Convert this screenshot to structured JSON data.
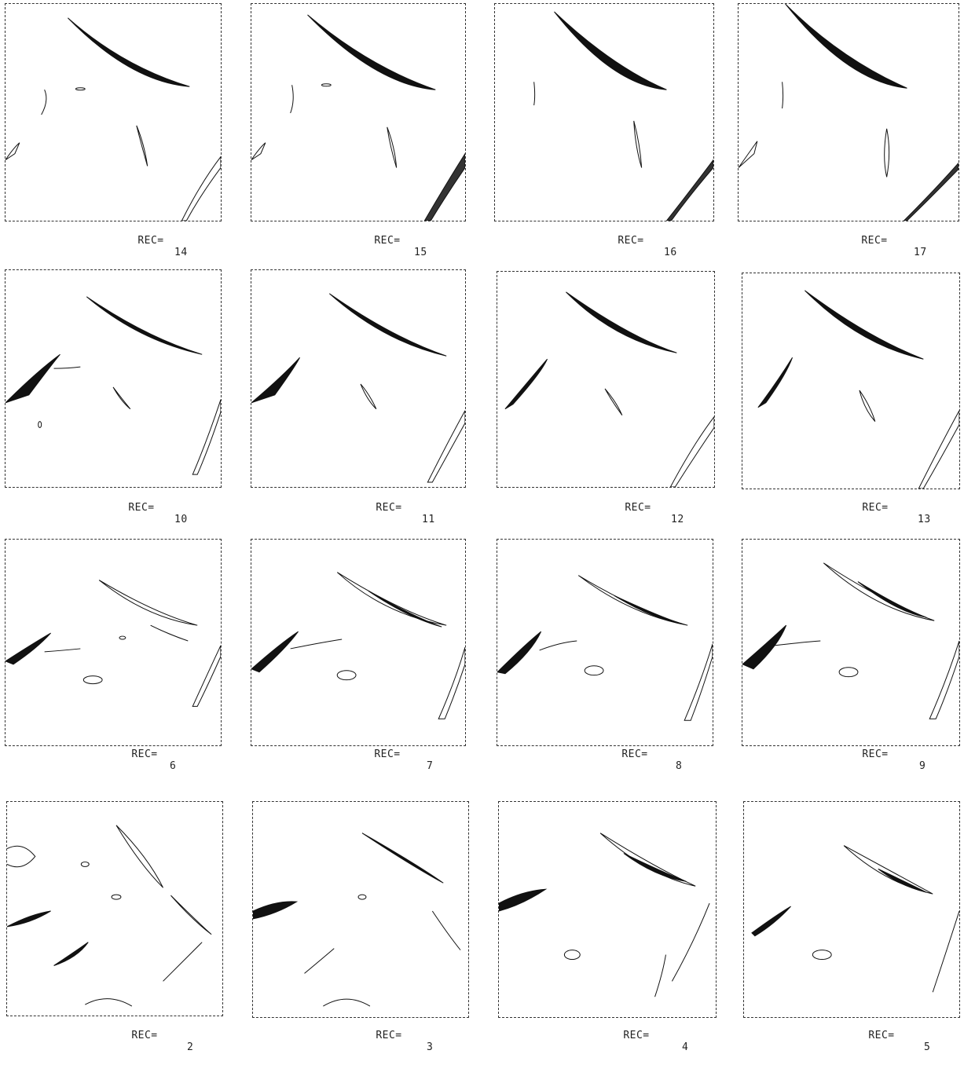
{
  "figure": {
    "rows": [
      {
        "panels": [
          {
            "label": "REC=",
            "number": "14"
          },
          {
            "label": "REC=",
            "number": "15"
          },
          {
            "label": "REC=",
            "number": "16"
          },
          {
            "label": "REC=",
            "number": "17"
          }
        ]
      },
      {
        "panels": [
          {
            "label": "REC=",
            "number": "10"
          },
          {
            "label": "REC=",
            "number": "11"
          },
          {
            "label": "REC=",
            "number": "12"
          },
          {
            "label": "REC=",
            "number": "13"
          }
        ]
      },
      {
        "panels": [
          {
            "label": "REC=",
            "number": "6"
          },
          {
            "label": "REC=",
            "number": "7"
          },
          {
            "label": "REC=",
            "number": "8"
          },
          {
            "label": "REC=",
            "number": "9"
          }
        ]
      },
      {
        "panels": [
          {
            "label": "REC=",
            "number": "2"
          },
          {
            "label": "REC=",
            "number": "3"
          },
          {
            "label": "REC=",
            "number": "4"
          },
          {
            "label": "REC=",
            "number": "5"
          }
        ]
      }
    ]
  },
  "colors": {
    "ink": "#111111",
    "background": "#ffffff"
  }
}
